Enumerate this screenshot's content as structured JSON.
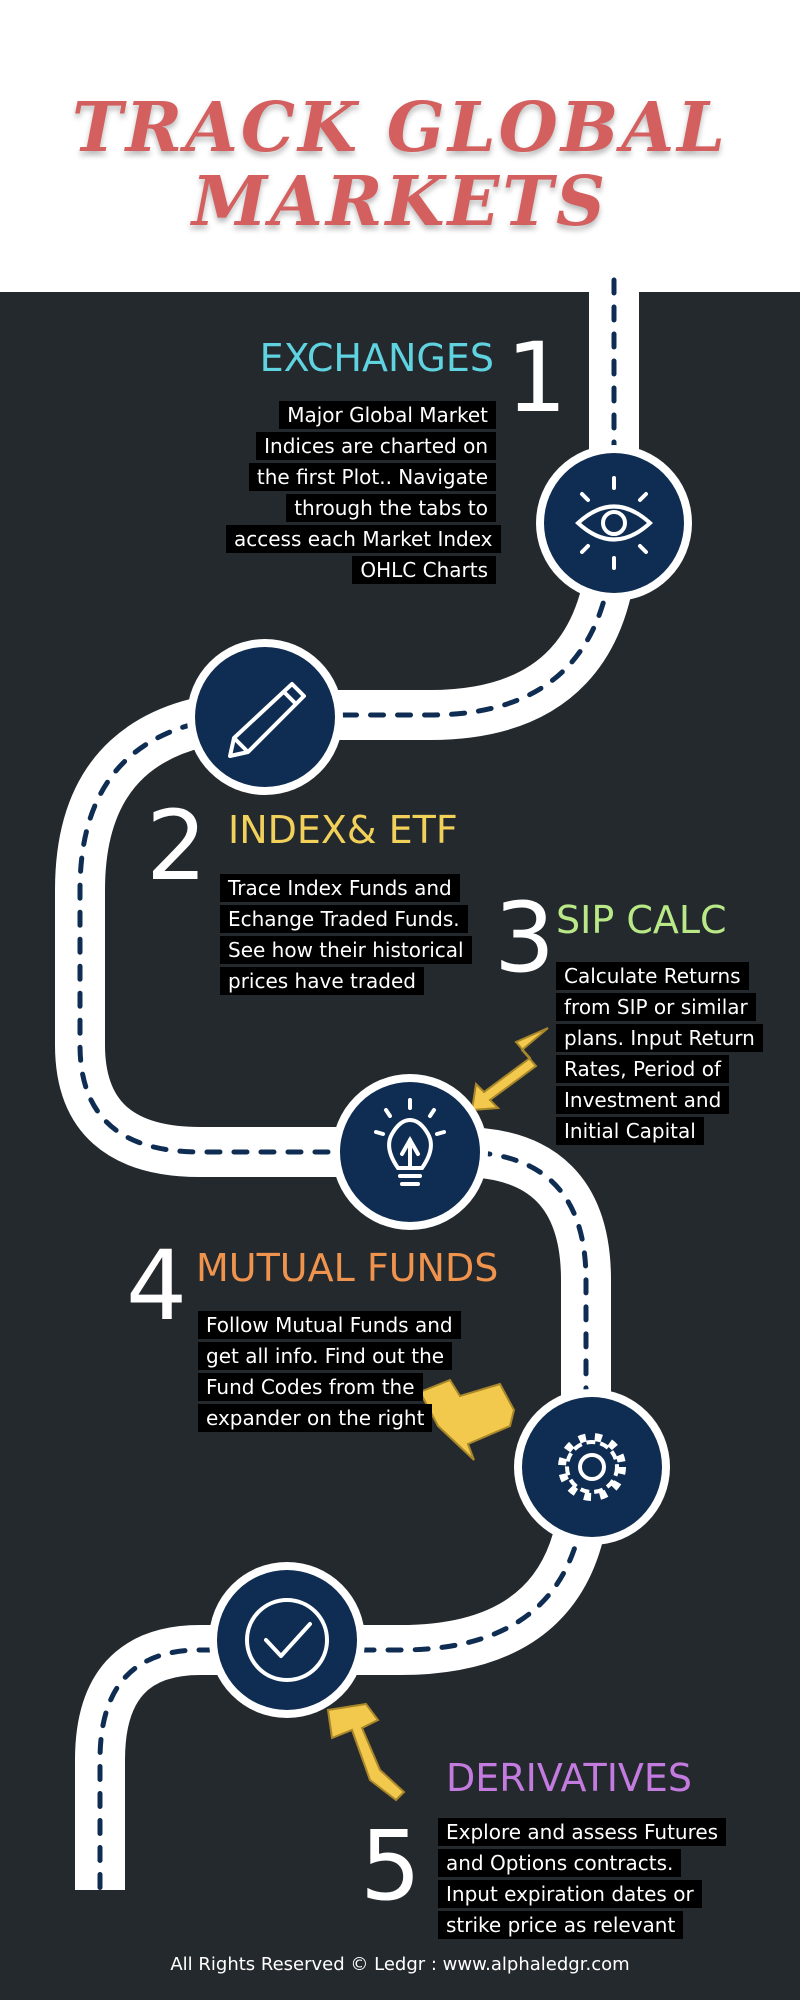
{
  "title": {
    "line1": "TRACK GLOBAL",
    "line2": "MARKETS"
  },
  "colors": {
    "title": "#d35f5f",
    "background": "#24292e",
    "circle": "#0f2d52",
    "road": "#ffffff",
    "arrow": "#f2c94c"
  },
  "steps": [
    {
      "number": "1",
      "title": "EXCHANGES",
      "color": "#5fd3e0",
      "icon": "eye-icon",
      "description": "Major Global Market Indices are charted on the first Plot.. Navigate through the tabs to access each Market Index OHLC Charts"
    },
    {
      "number": "2",
      "title": "INDEX& ETF",
      "color": "#f2d15b",
      "icon": "pencil-icon",
      "description": "Trace Index Funds and Echange Traded Funds. See how their historical prices have traded"
    },
    {
      "number": "3",
      "title": "SIP CALC",
      "color": "#b8e986",
      "icon": "lightbulb-icon",
      "description": "Calculate Returns from SIP or similar plans. Input Return Rates, Period of Investment and Initial Capital"
    },
    {
      "number": "4",
      "title": "MUTUAL FUNDS",
      "color": "#f0944d",
      "icon": "gear-icon",
      "description": "Follow Mutual Funds and get all info. Find out the Fund Codes from the expander on the right"
    },
    {
      "number": "5",
      "title": "DERIVATIVES",
      "color": "#c47be0",
      "icon": "checkmark-icon",
      "description": "Explore and assess Futures and Options contracts. Input expiration dates or strike price as relevant"
    }
  ],
  "footer": "All Rights Reserved © Ledgr : www.alphaledgr.com"
}
